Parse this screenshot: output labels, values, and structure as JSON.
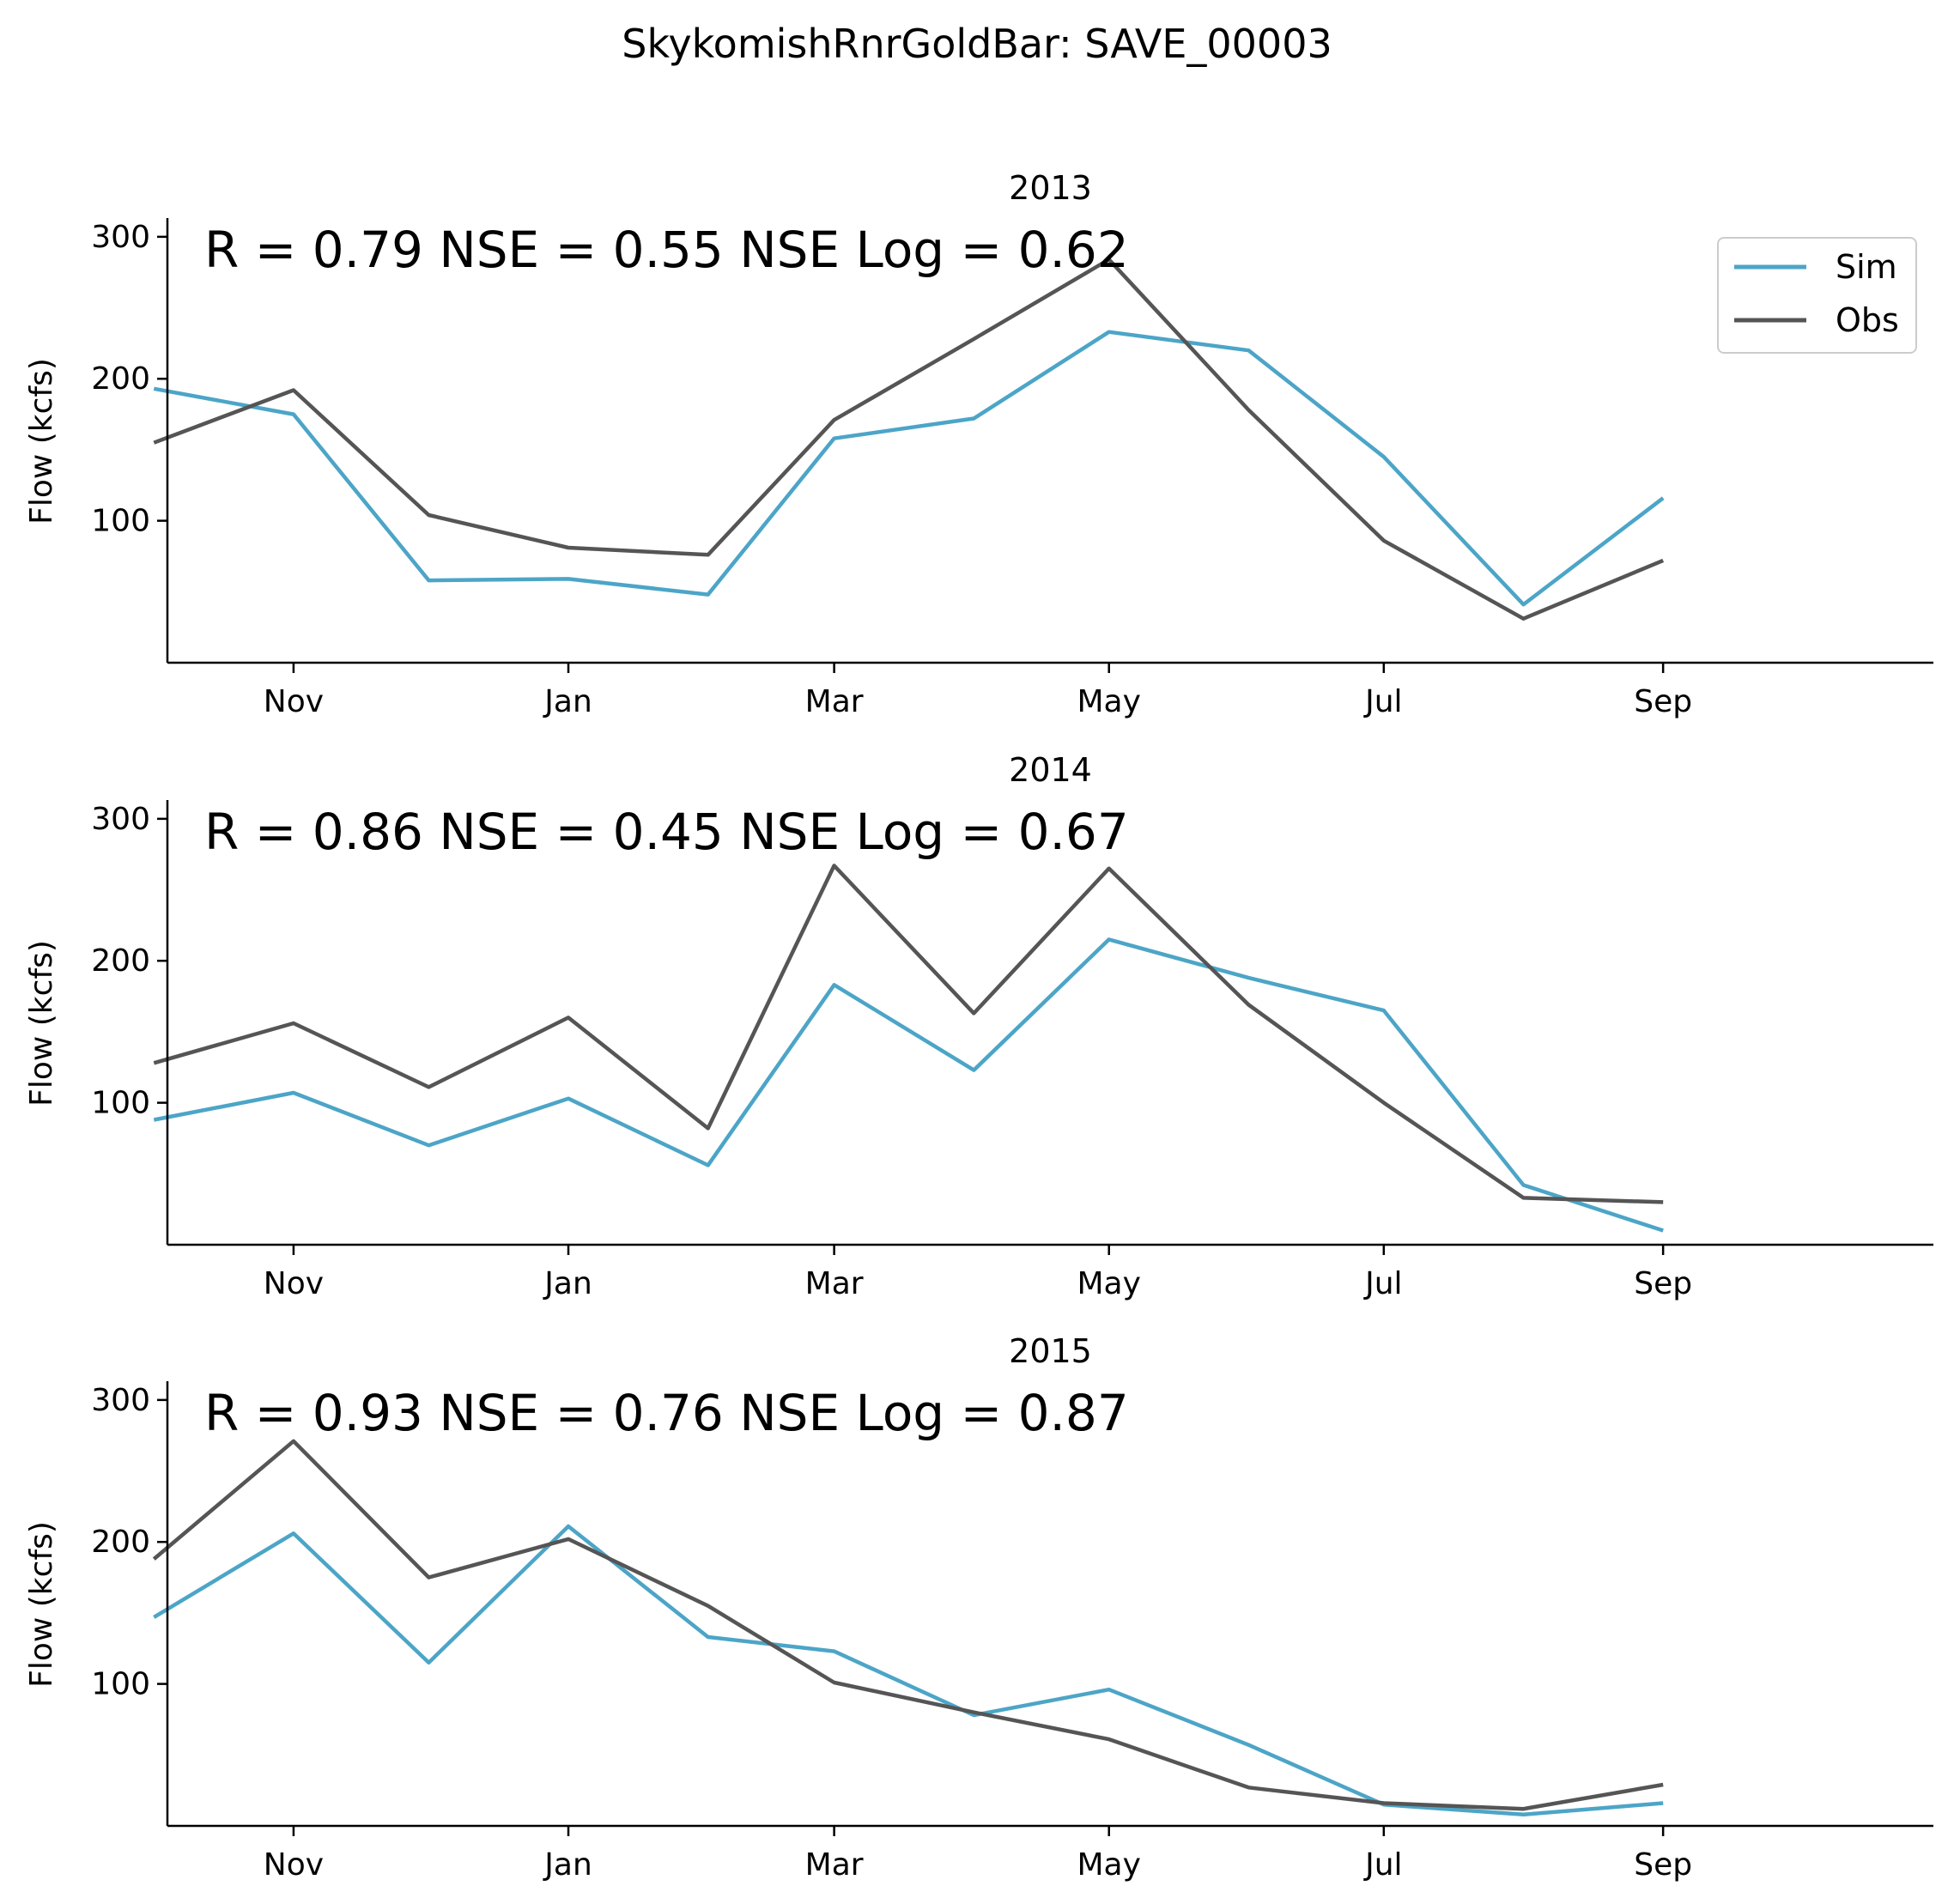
{
  "colors": {
    "sim": "#4ca5c7",
    "obs": "#555555",
    "background": "#ffffff",
    "axis": "#000000"
  },
  "chart_data": [
    {
      "type": "line",
      "suptitle": "SkykomishRnrGoldBar: SAVE_00003",
      "title": "2013",
      "stats": "R = 0.79  NSE = 0.55  NSE Log = 0.62",
      "xlabel": "",
      "ylabel": "Flow (kcfs)",
      "x_ticks": [
        "Nov",
        "Jan",
        "Mar",
        "May",
        "Jul",
        "Sep"
      ],
      "y_ticks": [
        100,
        200,
        300
      ],
      "xlim": [
        "2012-10-04",
        "2013-10-31"
      ],
      "ylim": [
        0,
        312
      ],
      "grid": false,
      "legend": {
        "position": "top-right",
        "entries": [
          "Sim",
          "Obs"
        ]
      },
      "x": [
        "2012-10-01",
        "2012-11-01",
        "2012-12-01",
        "2013-01-01",
        "2013-02-01",
        "2013-03-01",
        "2013-04-01",
        "2013-05-01",
        "2013-06-01",
        "2013-07-01",
        "2013-08-01",
        "2013-09-01"
      ],
      "series": [
        {
          "name": "Sim",
          "values": [
            193,
            175,
            58,
            59,
            48,
            158,
            172,
            233,
            220,
            145,
            41,
            116
          ]
        },
        {
          "name": "Obs",
          "values": [
            155,
            192,
            104,
            81,
            76,
            171,
            228,
            284,
            178,
            86,
            31,
            72
          ]
        }
      ]
    },
    {
      "type": "line",
      "title": "2014",
      "stats": "R = 0.86  NSE = 0.45  NSE Log = 0.67",
      "xlabel": "",
      "ylabel": "Flow (kcfs)",
      "x_ticks": [
        "Nov",
        "Jan",
        "Mar",
        "May",
        "Jul",
        "Sep"
      ],
      "y_ticks": [
        100,
        200,
        300
      ],
      "xlim": [
        "2013-10-04",
        "2014-10-31"
      ],
      "ylim": [
        0,
        312
      ],
      "grid": false,
      "x": [
        "2013-10-01",
        "2013-11-01",
        "2013-12-01",
        "2014-01-01",
        "2014-02-01",
        "2014-03-01",
        "2014-04-01",
        "2014-05-01",
        "2014-06-01",
        "2014-07-01",
        "2014-08-01",
        "2014-09-01"
      ],
      "series": [
        {
          "name": "Sim",
          "values": [
            88,
            107,
            70,
            103,
            56,
            183,
            123,
            215,
            188,
            165,
            42,
            10
          ]
        },
        {
          "name": "Obs",
          "values": [
            128,
            156,
            111,
            160,
            82,
            267,
            163,
            265,
            169,
            100,
            33,
            30
          ]
        }
      ]
    },
    {
      "type": "line",
      "title": "2015",
      "stats": "R = 0.93  NSE = 0.76  NSE Log = 0.87",
      "xlabel": "",
      "ylabel": "Flow (kcfs)",
      "x_ticks": [
        "Nov",
        "Jan",
        "Mar",
        "May",
        "Jul",
        "Sep"
      ],
      "y_ticks": [
        100,
        200,
        300
      ],
      "xlim": [
        "2014-10-04",
        "2015-10-31"
      ],
      "ylim": [
        0,
        312
      ],
      "grid": false,
      "x": [
        "2014-10-01",
        "2014-11-01",
        "2014-12-01",
        "2015-01-01",
        "2015-02-01",
        "2015-03-01",
        "2015-04-01",
        "2015-05-01",
        "2015-06-01",
        "2015-07-01",
        "2015-08-01",
        "2015-09-01"
      ],
      "series": [
        {
          "name": "Sim",
          "values": [
            147,
            206,
            115,
            211,
            133,
            123,
            78,
            96,
            57,
            15,
            8,
            16
          ]
        },
        {
          "name": "Obs",
          "values": [
            188,
            271,
            175,
            202,
            155,
            101,
            80,
            61,
            27,
            16,
            12,
            29
          ]
        }
      ]
    }
  ]
}
